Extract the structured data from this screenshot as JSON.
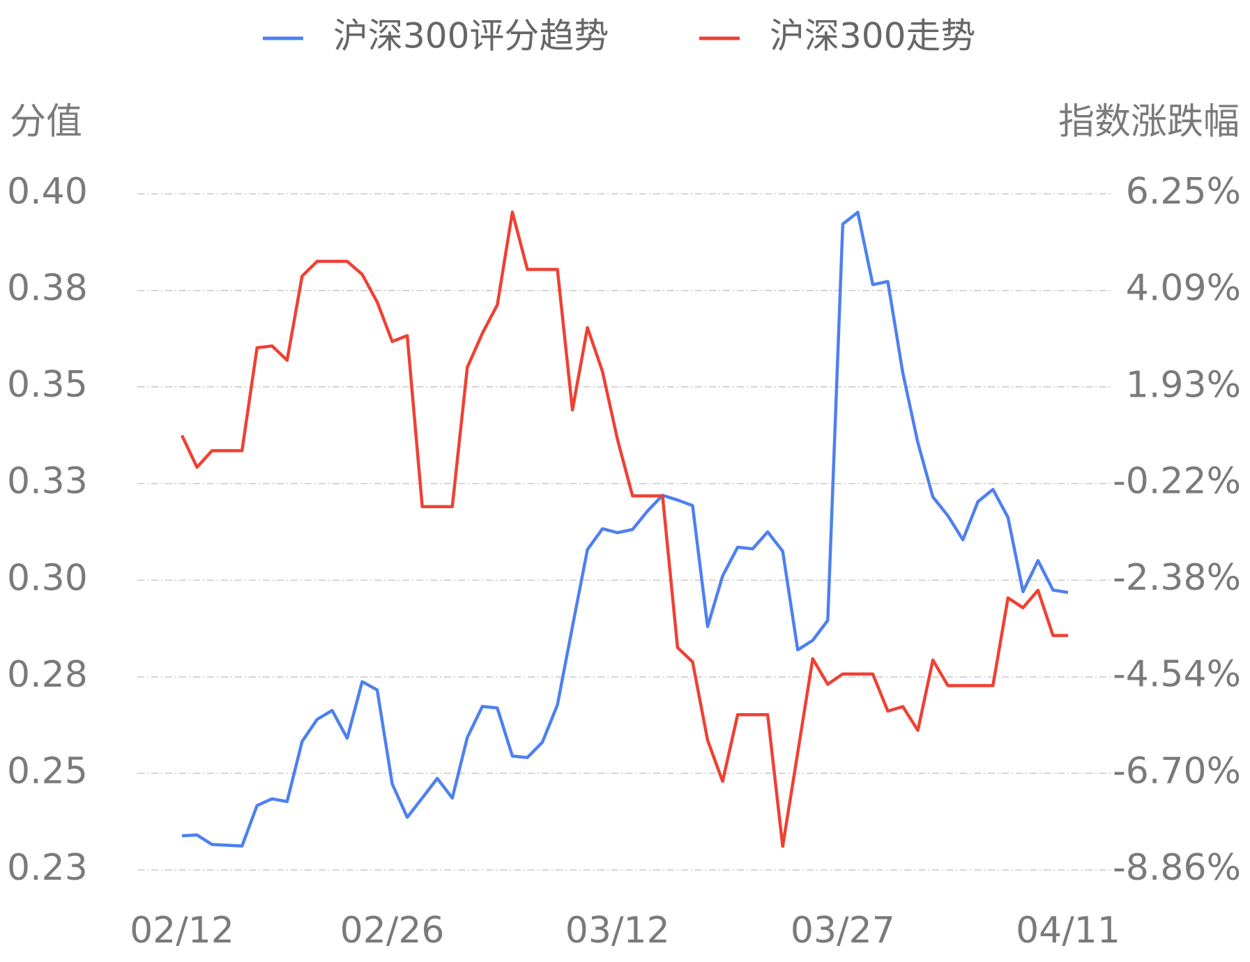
{
  "chart_data": {
    "type": "line",
    "y_label": "分值",
    "y2_label": "指数涨跌幅",
    "categories": [
      "02/12",
      null,
      null,
      null,
      null,
      null,
      null,
      null,
      null,
      null,
      null,
      null,
      null,
      null,
      "02/26",
      null,
      null,
      null,
      null,
      null,
      null,
      null,
      null,
      null,
      null,
      null,
      null,
      null,
      null,
      "03/12",
      null,
      null,
      null,
      null,
      null,
      null,
      null,
      null,
      null,
      null,
      null,
      null,
      null,
      null,
      "03/27",
      null,
      null,
      null,
      null,
      null,
      null,
      null,
      null,
      null,
      null,
      null,
      null,
      null,
      null,
      "04/11"
    ],
    "series": [
      {
        "name": "沪深300评分趋势",
        "color": "#4e80ee",
        "axis": "y",
        "values": [
          0.2367,
          0.2369,
          0.2345,
          0.2343,
          0.2341,
          0.2444,
          0.2461,
          0.2454,
          0.2607,
          0.2663,
          0.2686,
          0.2615,
          0.2759,
          0.2738,
          0.2499,
          0.2414,
          0.2463,
          0.2513,
          0.2463,
          0.2617,
          0.2696,
          0.2692,
          0.257,
          0.2566,
          0.2605,
          0.27,
          0.2899,
          0.3095,
          0.3148,
          0.3138,
          0.3146,
          0.3193,
          0.3233,
          0.3221,
          0.3207,
          0.2899,
          0.3028,
          0.3101,
          0.3097,
          0.314,
          0.3091,
          0.284,
          0.2864,
          0.2915,
          0.3923,
          0.3953,
          0.3769,
          0.3777,
          0.3544,
          0.3367,
          0.3229,
          0.3181,
          0.312,
          0.3217,
          0.3248,
          0.3177,
          0.2988,
          0.3067,
          0.2992,
          0.2986
        ]
      },
      {
        "name": "沪深300走势",
        "color": "#ee4134",
        "axis": "y2",
        "values": [
          0.85,
          0.14,
          0.51,
          0.51,
          0.51,
          2.81,
          2.85,
          2.53,
          4.41,
          4.74,
          4.74,
          4.74,
          4.45,
          3.83,
          2.95,
          3.08,
          -0.74,
          -0.74,
          -0.74,
          2.37,
          3.13,
          3.77,
          5.84,
          4.56,
          4.56,
          4.56,
          1.42,
          3.26,
          2.28,
          0.76,
          -0.5,
          -0.5,
          -0.5,
          -3.89,
          -4.21,
          -5.96,
          -6.88,
          -5.39,
          -5.39,
          -5.39,
          -8.33,
          -6.24,
          -4.14,
          -4.71,
          -4.48,
          -4.48,
          -4.48,
          -5.31,
          -5.21,
          -5.74,
          -4.17,
          -4.74,
          -4.74,
          -4.74,
          -4.74,
          -2.78,
          -3.0,
          -2.61,
          -3.62,
          -3.62
        ]
      }
    ],
    "ylim": [
      0.228,
      0.4
    ],
    "yticks": [
      {
        "value": 0.228,
        "label": "0.23"
      },
      {
        "value": 0.2526,
        "label": "0.25"
      },
      {
        "value": 0.2771,
        "label": "0.28"
      },
      {
        "value": 0.3017,
        "label": "0.30"
      },
      {
        "value": 0.3263,
        "label": "0.33"
      },
      {
        "value": 0.3509,
        "label": "0.35"
      },
      {
        "value": 0.3754,
        "label": "0.38"
      },
      {
        "value": 0.4,
        "label": "0.40"
      }
    ],
    "y2lim": [
      -8.86,
      6.25
    ],
    "y2ticks": [
      {
        "value": -8.86,
        "label": "-8.86%"
      },
      {
        "value": -6.7,
        "label": "-6.70%"
      },
      {
        "value": -4.54,
        "label": "-4.54%"
      },
      {
        "value": -2.38,
        "label": "-2.38%"
      },
      {
        "value": -0.22,
        "label": "-0.22%"
      },
      {
        "value": 1.93,
        "label": "1.93%"
      },
      {
        "value": 4.09,
        "label": "4.09%"
      },
      {
        "value": 6.25,
        "label": "6.25%"
      }
    ],
    "grid": true,
    "legend": "top"
  }
}
